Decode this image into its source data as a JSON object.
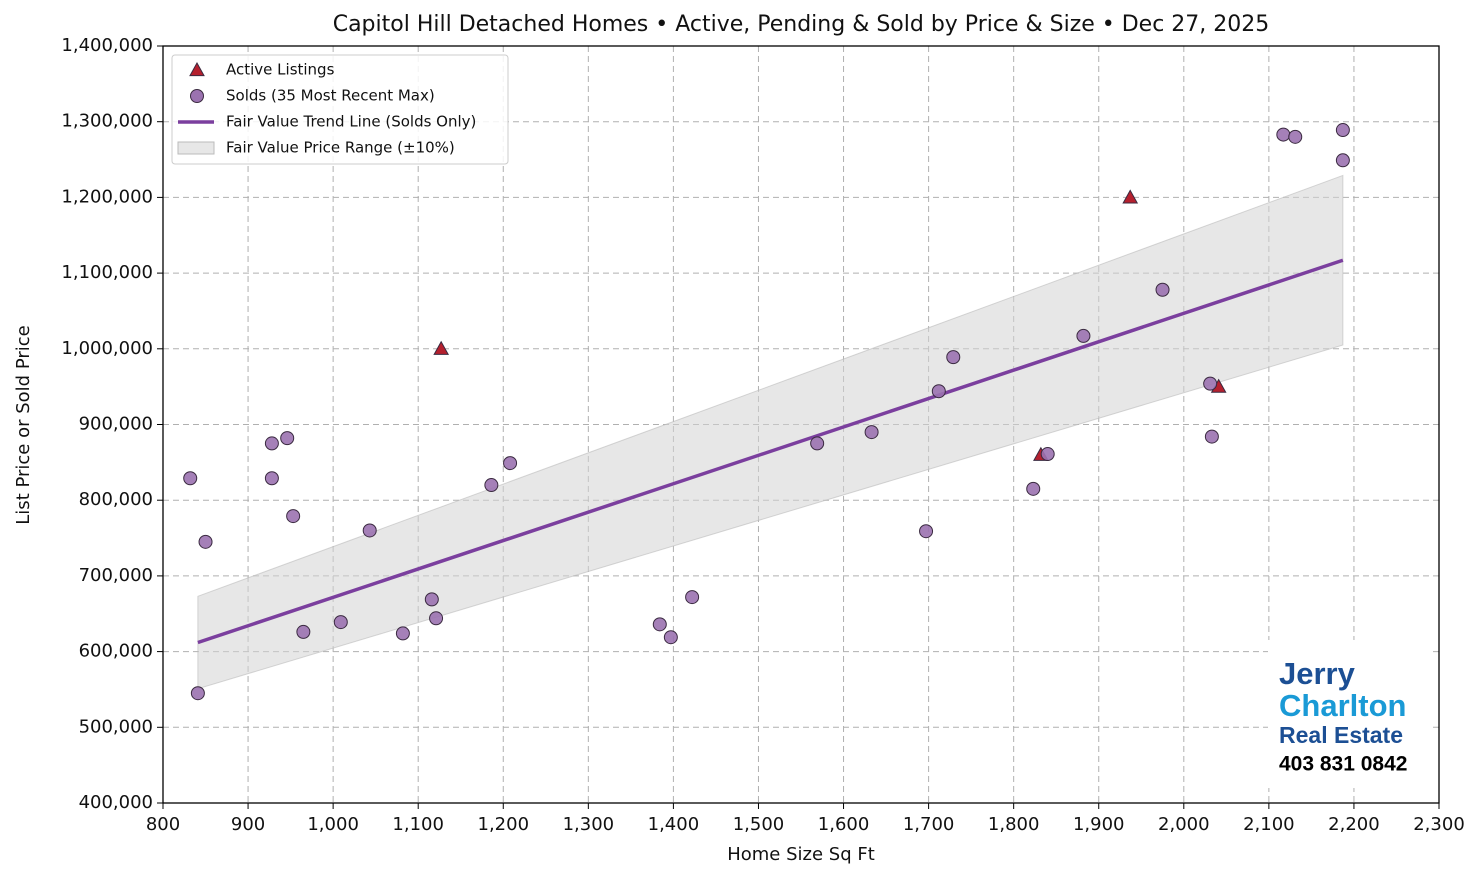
{
  "chart_data": {
    "type": "scatter",
    "title": "Capitol Hill Detached Homes • Active, Pending & Sold by Price & Size • Dec 27, 2025",
    "x_label": "Home Size Sq Ft",
    "y_label": "List Price or Sold Price",
    "xlim": [
      800,
      2300
    ],
    "ylim": [
      400000,
      1400000
    ],
    "xticks": [
      {
        "value": 800,
        "label": "800"
      },
      {
        "value": 900,
        "label": "900"
      },
      {
        "value": 1000,
        "label": "1,000"
      },
      {
        "value": 1100,
        "label": "1,100"
      },
      {
        "value": 1200,
        "label": "1,200"
      },
      {
        "value": 1300,
        "label": "1,300"
      },
      {
        "value": 1400,
        "label": "1,400"
      },
      {
        "value": 1500,
        "label": "1,500"
      },
      {
        "value": 1600,
        "label": "1,600"
      },
      {
        "value": 1700,
        "label": "1,700"
      },
      {
        "value": 1800,
        "label": "1,800"
      },
      {
        "value": 1900,
        "label": "1,900"
      },
      {
        "value": 2000,
        "label": "2,000"
      },
      {
        "value": 2100,
        "label": "2,100"
      },
      {
        "value": 2200,
        "label": "2,200"
      },
      {
        "value": 2300,
        "label": "2,300"
      }
    ],
    "yticks": [
      {
        "value": 400000,
        "label": "400,000"
      },
      {
        "value": 500000,
        "label": "500,000"
      },
      {
        "value": 600000,
        "label": "600,000"
      },
      {
        "value": 700000,
        "label": "700,000"
      },
      {
        "value": 800000,
        "label": "800,000"
      },
      {
        "value": 900000,
        "label": "900,000"
      },
      {
        "value": 1000000,
        "label": "1,000,000"
      },
      {
        "value": 1100000,
        "label": "1,100,000"
      },
      {
        "value": 1200000,
        "label": "1,200,000"
      },
      {
        "value": 1300000,
        "label": "1,300,000"
      },
      {
        "value": 1400000,
        "label": "1,400,000"
      }
    ],
    "grid": true,
    "legend": "upper-left",
    "series": [
      {
        "name": "Active Listings",
        "type": "scatter",
        "marker": "triangle",
        "color": "#b5202e",
        "x": [
          1127,
          1937,
          1832,
          2041
        ],
        "values": [
          1000000,
          1200000,
          860000,
          950000
        ]
      },
      {
        "name": "Solds (35 Most Recent Max)",
        "type": "scatter",
        "marker": "circle",
        "color": "#9b72b0",
        "x": [
          832,
          850,
          841,
          928,
          928,
          946,
          953,
          965,
          1009,
          1043,
          1082,
          1116,
          1121,
          1186,
          1208,
          1384,
          1397,
          1422,
          1569,
          1633,
          1697,
          1712,
          1729,
          1823,
          1840,
          1882,
          1975,
          2031,
          2033,
          2117,
          2131,
          2187,
          2187
        ],
        "values": [
          829000,
          745000,
          545000,
          875000,
          829000,
          882000,
          779000,
          626000,
          639000,
          760000,
          624000,
          669000,
          644000,
          820000,
          849000,
          636000,
          619000,
          672000,
          875000,
          890000,
          759000,
          944000,
          989000,
          815000,
          861000,
          1017000,
          1078000,
          954000,
          884000,
          1283000,
          1280000,
          1289000,
          1249000
        ]
      },
      {
        "name": "Fair Value Trend Line (Solds Only)",
        "type": "line",
        "color": "#7b3f9e",
        "x": [
          841,
          2187
        ],
        "values": [
          612000,
          1117000
        ]
      },
      {
        "name": "Fair Value Price Range (±10%)",
        "type": "band",
        "color": "#d4d4d4",
        "x": [
          841,
          2187
        ],
        "lower": [
          551000,
          1005000
        ],
        "upper": [
          673000,
          1229000
        ]
      }
    ]
  },
  "logo": {
    "line1": "Jerry",
    "line2": "Charlton",
    "line3": "Real Estate",
    "phone": "403 831 0842"
  }
}
